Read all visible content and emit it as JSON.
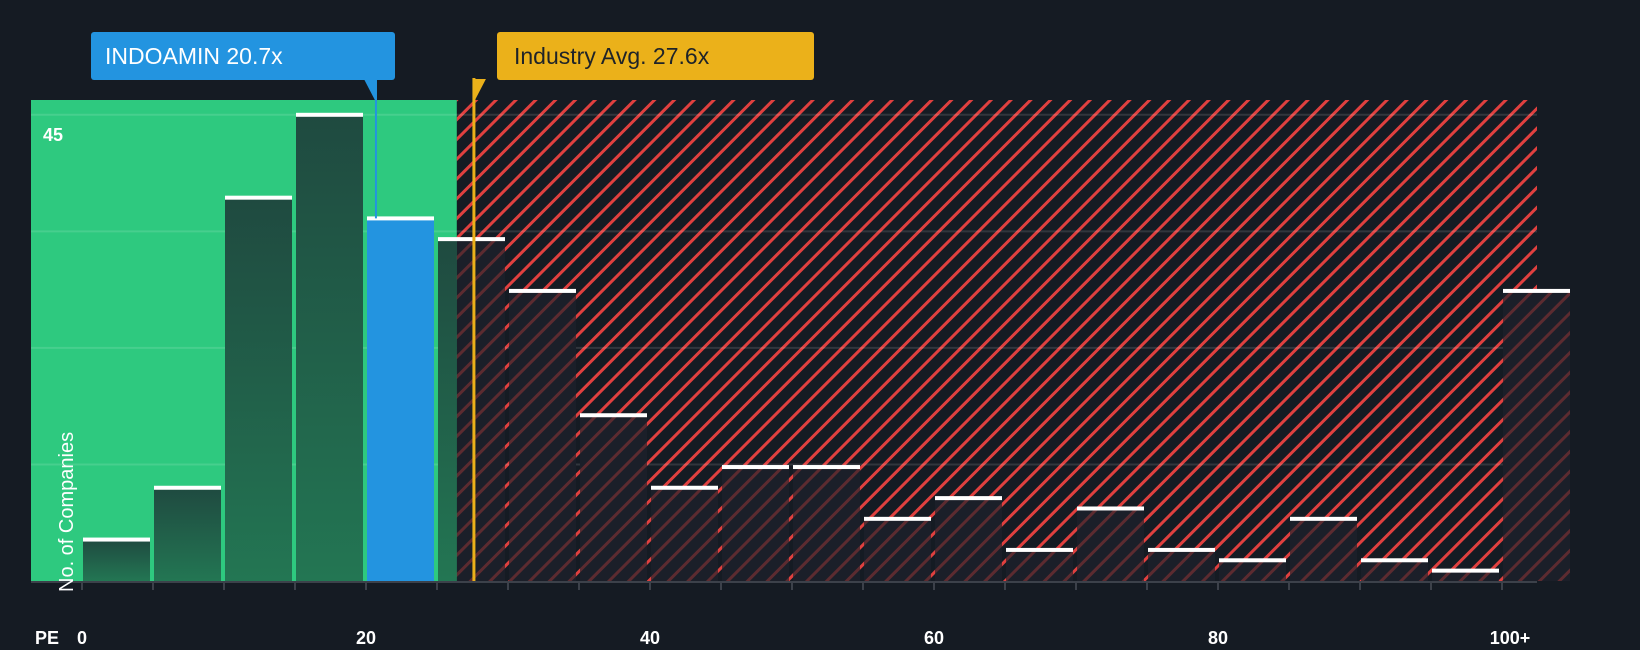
{
  "callouts": {
    "company": "INDOAMIN 20.7x",
    "industry": "Industry Avg. 27.6x"
  },
  "axis": {
    "y_label": "No. of Companies",
    "y_tick": "45",
    "x_prefix": "PE",
    "x_ticks": [
      "0",
      "20",
      "40",
      "60",
      "80",
      "100+"
    ]
  },
  "colors": {
    "background": "#151b23",
    "undervalued_zone": "#2ec97f",
    "company_bar": "#2394e0",
    "industry_line": "#ebb11a",
    "overvalued_hatch": "#e0403f",
    "bar_dark": "#21463f",
    "bar_cap": "#ffffff"
  },
  "chart_data": {
    "type": "bar",
    "title": "",
    "xlabel": "PE",
    "ylabel": "No. of Companies",
    "categories": [
      "0-5",
      "5-10",
      "10-15",
      "15-20",
      "20-25",
      "25-30",
      "30-35",
      "35-40",
      "40-45",
      "45-50",
      "50-55",
      "55-60",
      "60-65",
      "65-70",
      "70-75",
      "75-80",
      "80-85",
      "85-90",
      "90-95",
      "95-100",
      "100+"
    ],
    "values": [
      4,
      9,
      37,
      45,
      35,
      33,
      28,
      16,
      9,
      11,
      11,
      6,
      8,
      3,
      7,
      3,
      2,
      6,
      2,
      1,
      28
    ],
    "highlighted_bin": "20-25",
    "ylim": [
      0,
      46.5
    ],
    "y_gridlines": [
      11.25,
      22.5,
      33.75,
      45
    ],
    "x_ticks": [
      0,
      20,
      40,
      60,
      80,
      "100+"
    ],
    "annotations": [
      {
        "label": "INDOAMIN 20.7x",
        "x": 20.7
      },
      {
        "label": "Industry Avg. 27.6x",
        "x": 27.6
      }
    ],
    "zones": [
      {
        "name": "undervalued",
        "from": 0,
        "to": 26.4,
        "color": "#2ec97f"
      },
      {
        "name": "overvalued",
        "from": 26.4,
        "to": "100+",
        "style": "red-hatched"
      }
    ],
    "grid": true,
    "legend": null
  }
}
